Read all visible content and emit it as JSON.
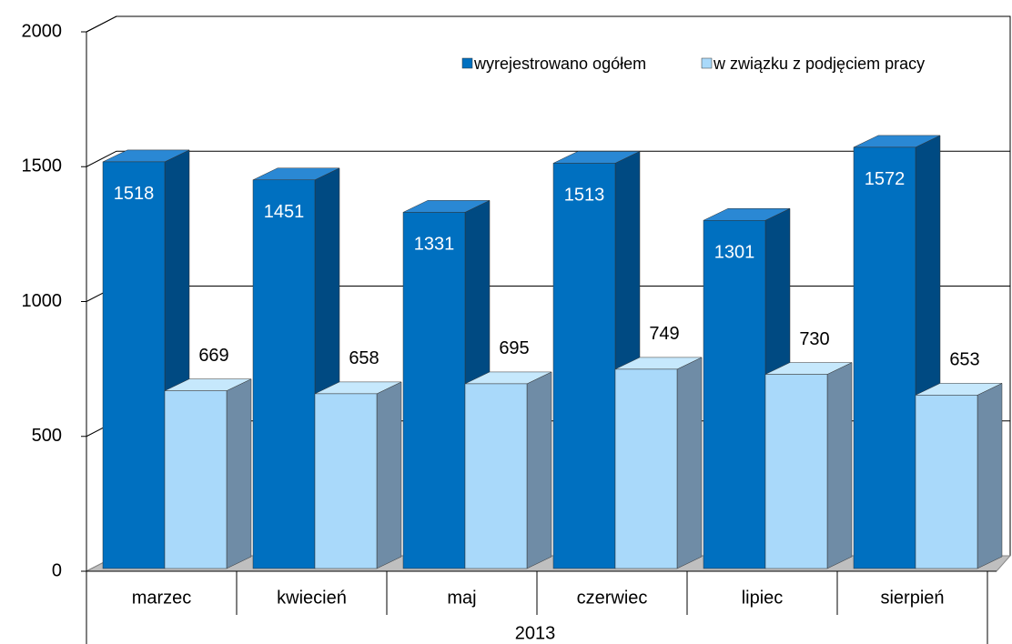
{
  "chart_data": {
    "type": "bar3d",
    "categories": [
      "marzec",
      "kwiecień",
      "maj",
      "czerwiec",
      "lipiec",
      "sierpień"
    ],
    "x_group_label": "2013",
    "series": [
      {
        "name": "wyrejestrowano ogółem",
        "color": "#0070c0",
        "values": [
          1518,
          1451,
          1331,
          1513,
          1301,
          1572
        ]
      },
      {
        "name": "w związku z podjęciem pracy",
        "color": "#a9d9fa",
        "values": [
          669,
          658,
          695,
          749,
          730,
          653
        ]
      }
    ],
    "ylim": [
      0,
      2000
    ],
    "yticks": [
      0,
      500,
      1000,
      1500,
      2000
    ],
    "grid": true,
    "legend": "top-right"
  }
}
